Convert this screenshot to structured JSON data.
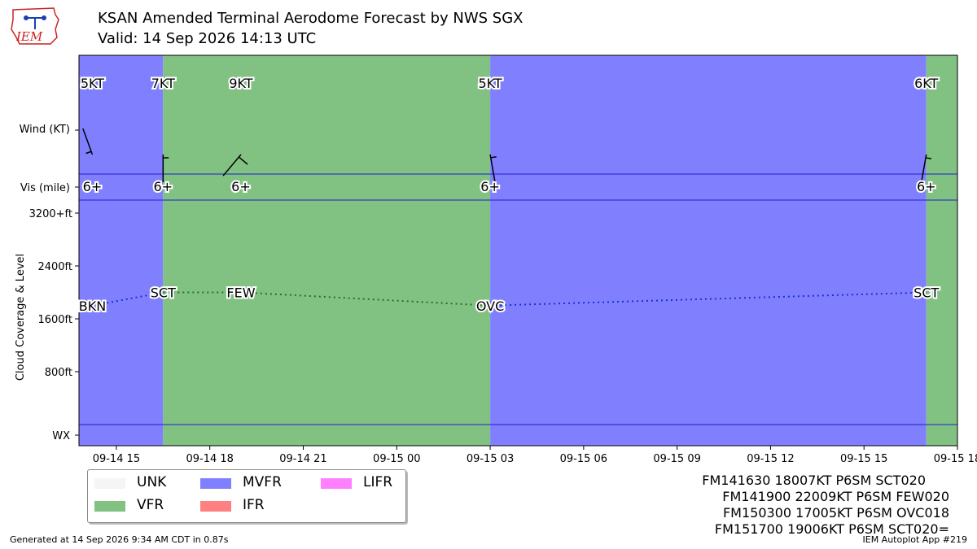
{
  "header": {
    "title": "KSAN Amended Terminal Aerodome Forecast by NWS SGX",
    "subtitle": "Valid: 14 Sep 2026 14:13 UTC",
    "logo_text": "IEM"
  },
  "colors": {
    "VFR": "#81c182",
    "MVFR": "#8080ff",
    "IFR": "#ff8080",
    "LIFR": "#ff80ff",
    "UNK": "#f5f5f5",
    "border": "#2020cc"
  },
  "chart_data": {
    "type": "timeline",
    "x_axis": {
      "ticks": [
        "09-14 15",
        "09-14 18",
        "09-14 21",
        "09-15 00",
        "09-15 03",
        "09-15 06",
        "09-15 09",
        "09-15 12",
        "09-15 15",
        "09-15 18"
      ],
      "tick_hours": [
        15,
        18,
        21,
        24,
        27,
        30,
        33,
        36,
        39,
        42
      ],
      "range_hours": [
        13.8,
        42.0
      ]
    },
    "row_labels": {
      "wind": "Wind (KT)",
      "vis": "Vis (mile)",
      "wx": "WX",
      "cloud_axis": "Cloud Coverage & Level"
    },
    "cloud_axis_ticks": [
      {
        "label": "800ft",
        "value": 800
      },
      {
        "label": "1600ft",
        "value": 1600
      },
      {
        "label": "2400ft",
        "value": 2400
      },
      {
        "label": "3200+ft",
        "value": 3200
      }
    ],
    "categories": [
      {
        "start": 13.8,
        "end": 16.5,
        "cat": "MVFR"
      },
      {
        "start": 16.5,
        "end": 27.0,
        "cat": "VFR"
      },
      {
        "start": 27.0,
        "end": 41.0,
        "cat": "MVFR"
      },
      {
        "start": 41.0,
        "end": 42.0,
        "cat": "VFR"
      }
    ],
    "wind": [
      {
        "hour": 14.23,
        "speed": "5KT",
        "dir": 340,
        "kt": 5
      },
      {
        "hour": 16.5,
        "speed": "7KT",
        "dir": 180,
        "kt": 7
      },
      {
        "hour": 19.0,
        "speed": "9KT",
        "dir": 220,
        "kt": 9
      },
      {
        "hour": 27.0,
        "speed": "5KT",
        "dir": 170,
        "kt": 5
      },
      {
        "hour": 41.0,
        "speed": "6KT",
        "dir": 190,
        "kt": 6
      }
    ],
    "visibility": [
      {
        "hour": 14.23,
        "label": "6+"
      },
      {
        "hour": 16.5,
        "label": "6+"
      },
      {
        "hour": 19.0,
        "label": "6+"
      },
      {
        "hour": 27.0,
        "label": "6+"
      },
      {
        "hour": 41.0,
        "label": "6+"
      }
    ],
    "clouds": [
      {
        "hour": 14.23,
        "level": 1800,
        "cover": "BKN"
      },
      {
        "hour": 16.5,
        "level": 2000,
        "cover": "SCT"
      },
      {
        "hour": 19.0,
        "level": 2000,
        "cover": "FEW"
      },
      {
        "hour": 27.0,
        "level": 1800,
        "cover": "OVC"
      },
      {
        "hour": 41.0,
        "level": 2000,
        "cover": "SCT"
      }
    ]
  },
  "legend": {
    "items": [
      {
        "label": "UNK",
        "cat": "UNK"
      },
      {
        "label": "VFR",
        "cat": "VFR"
      },
      {
        "label": "MVFR",
        "cat": "MVFR"
      },
      {
        "label": "IFR",
        "cat": "IFR"
      },
      {
        "label": "LIFR",
        "cat": "LIFR"
      }
    ]
  },
  "taf_lines": [
    "FM141630 18007KT P6SM SCT020",
    "FM141900 22009KT P6SM FEW020",
    "FM150300 17005KT P6SM OVC018",
    "FM151700 19006KT P6SM SCT020="
  ],
  "footer": {
    "generated": "Generated at 14 Sep 2026 9:34 AM CDT in 0.87s",
    "app": "IEM Autoplot App #219"
  }
}
